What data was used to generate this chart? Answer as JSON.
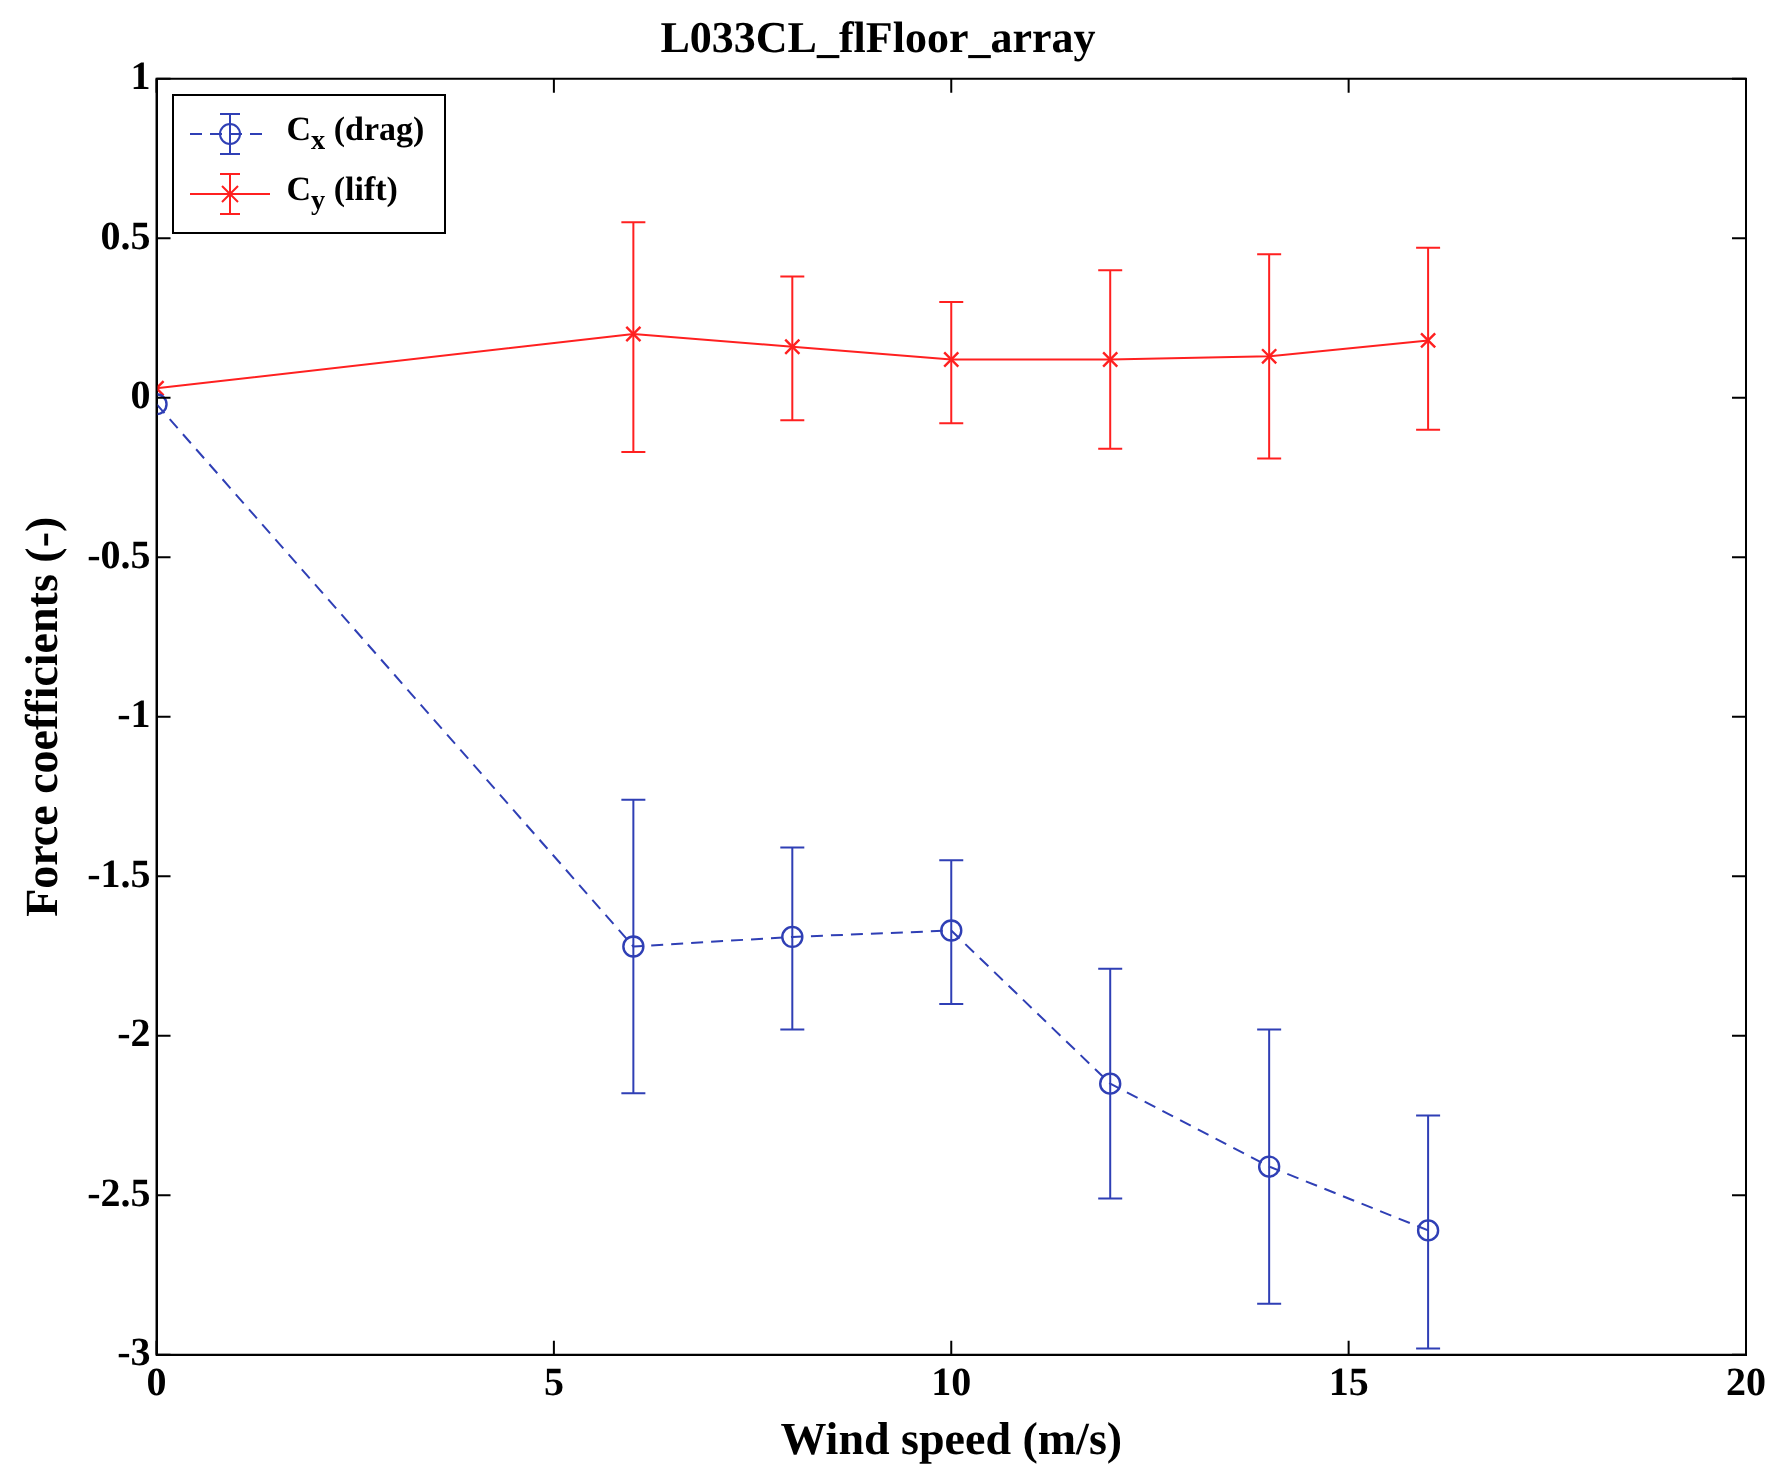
{
  "chart_data": {
    "type": "line",
    "title": "L033CL_flFloor_array",
    "xlabel": "Wind speed (m/s)",
    "ylabel": "Force coefficients (-)",
    "x": [
      0,
      6,
      8,
      10,
      12,
      14,
      16
    ],
    "xlim": [
      0,
      20
    ],
    "xticks": [
      0,
      5,
      10,
      15,
      20
    ],
    "ylim": [
      -3,
      1
    ],
    "yticks": [
      -3,
      -2.5,
      -2,
      -1.5,
      -1,
      -0.5,
      0,
      0.5,
      1
    ],
    "grid": false,
    "legend": "top left",
    "series": [
      {
        "name": "C$_{x}$ (drag)",
        "color": "#2f3fb5",
        "marker": "circle",
        "line_style": "dashed",
        "values": [
          -0.02,
          -1.72,
          -1.69,
          -1.67,
          -2.15,
          -2.41,
          -2.61
        ],
        "errors": [
          null,
          [
            -2.18,
            -1.26
          ],
          [
            -1.98,
            -1.41
          ],
          [
            -1.9,
            -1.45
          ],
          [
            -2.51,
            -1.79
          ],
          [
            -2.84,
            -1.98
          ],
          [
            -2.98,
            -2.25
          ]
        ]
      },
      {
        "name": "C$_{y}$ (lift)",
        "color": "#ff2020",
        "marker": "cross",
        "line_style": "solid",
        "values": [
          0.03,
          0.2,
          0.16,
          0.12,
          0.12,
          0.13,
          0.18
        ],
        "errors": [
          null,
          [
            -0.17,
            0.55
          ],
          [
            -0.07,
            0.38
          ],
          [
            -0.08,
            0.3
          ],
          [
            -0.16,
            0.4
          ],
          [
            -0.19,
            0.45
          ],
          [
            -0.1,
            0.47
          ]
        ]
      }
    ]
  }
}
